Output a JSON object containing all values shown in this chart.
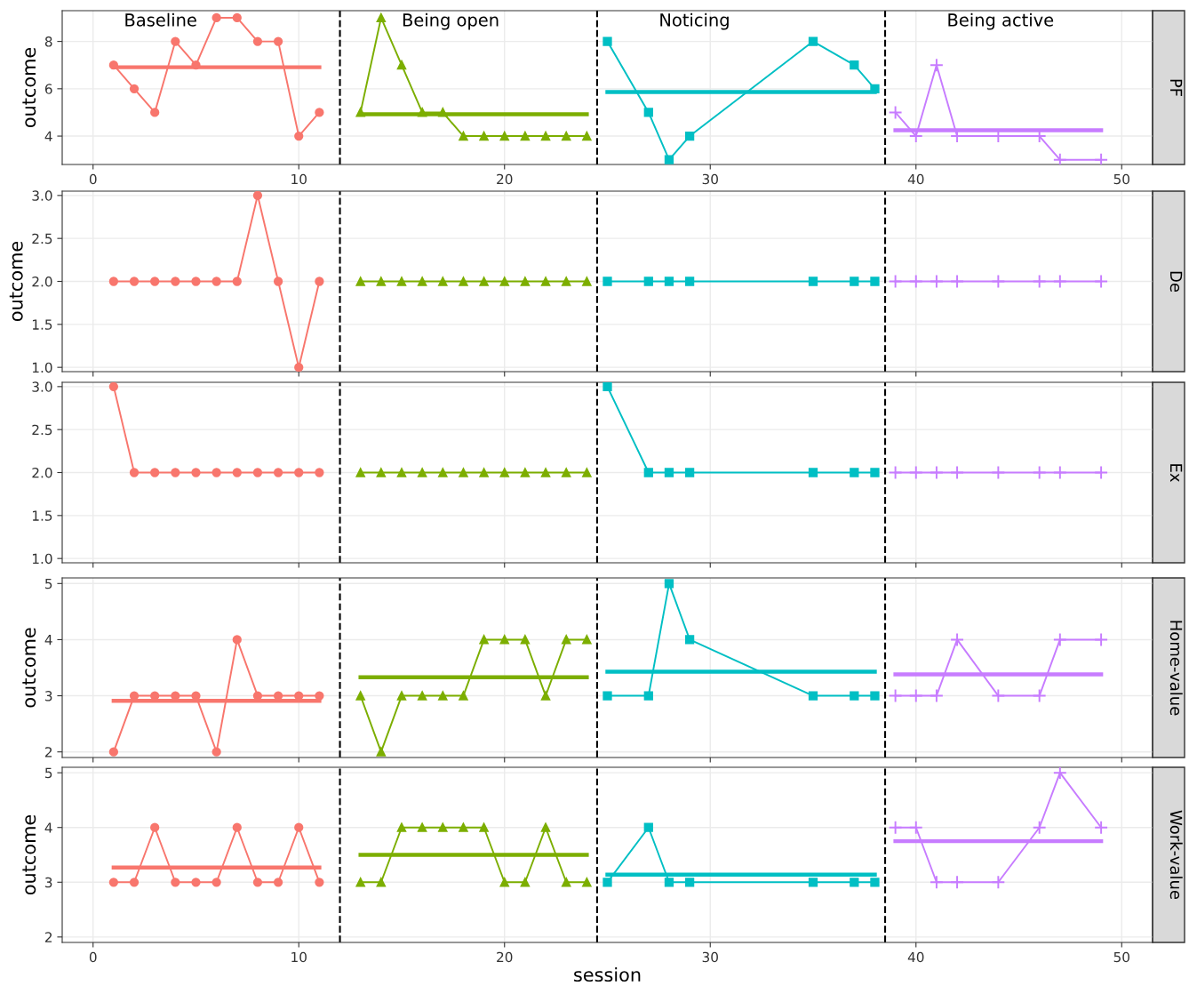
{
  "chart_data": [
    {
      "type": "line",
      "y2label": "PF",
      "ylabel": "outcome",
      "xlim": [
        -1.5,
        51.5
      ],
      "xticks": [
        0,
        10,
        20,
        30,
        40,
        50
      ],
      "ylim": [
        2.8,
        9.3
      ],
      "yticks": [
        4,
        6,
        8
      ],
      "grid": true,
      "annotations": [
        "Baseline",
        "Being open",
        "Noticing",
        "Being active"
      ],
      "ref_lines": [
        {
          "axis": "x",
          "value": 12,
          "color": "#000000",
          "line_style": "dashed"
        },
        {
          "axis": "x",
          "value": 24.5,
          "color": "#000000",
          "line_style": "dashed"
        },
        {
          "axis": "x",
          "value": 38.5,
          "color": "#000000",
          "line_style": "dashed"
        }
      ],
      "series": [
        {
          "color": "#f8766d",
          "marker": "circle",
          "x": [
            1,
            2,
            3,
            4,
            5,
            6,
            7,
            8,
            9,
            10,
            11
          ],
          "values": [
            7,
            6,
            5,
            8,
            7,
            9,
            9,
            8,
            8,
            4,
            5
          ]
        },
        {
          "color": "#7cae00",
          "marker": "triangle",
          "x": [
            13,
            14,
            15,
            16,
            17,
            18,
            19,
            20,
            21,
            22,
            23,
            24
          ],
          "values": [
            5,
            9,
            7,
            5,
            5,
            4,
            4,
            4,
            4,
            4,
            4,
            4
          ]
        },
        {
          "color": "#00bfc4",
          "marker": "square",
          "x": [
            25,
            27,
            28,
            29,
            35,
            37,
            38
          ],
          "values": [
            8,
            5,
            3,
            4,
            8,
            7,
            6
          ]
        },
        {
          "color": "#c77cff",
          "marker": "cross",
          "x": [
            39,
            40,
            41,
            42,
            44,
            46,
            47,
            49
          ],
          "values": [
            5,
            4,
            7,
            4,
            4,
            4,
            3,
            3
          ]
        },
        {
          "color": "#f8766d",
          "marker": "none",
          "x": [
            1,
            11
          ],
          "values": [
            6.91,
            6.91
          ]
        },
        {
          "color": "#7cae00",
          "marker": "none",
          "x": [
            13,
            24
          ],
          "values": [
            4.92,
            4.92
          ]
        },
        {
          "color": "#00bfc4",
          "marker": "none",
          "x": [
            25,
            38
          ],
          "values": [
            5.86,
            5.86
          ]
        },
        {
          "color": "#c77cff",
          "marker": "none",
          "x": [
            39,
            49
          ],
          "values": [
            4.25,
            4.25
          ]
        }
      ]
    },
    {
      "type": "line",
      "y2label": "De",
      "ylabel": "outcome",
      "xlim": [
        -1.5,
        51.5
      ],
      "xticks": [
        0,
        10,
        20,
        30,
        40,
        50
      ],
      "ylim": [
        0.95,
        3.05
      ],
      "yticks": [
        {
          "value": 1,
          "label": "1.0"
        },
        1.5,
        {
          "value": 2,
          "label": "2.0"
        },
        2.5,
        {
          "value": 3,
          "label": "3.0"
        }
      ],
      "grid": true,
      "tick_labels": "y",
      "ref_lines": [
        {
          "axis": "x",
          "value": 12,
          "color": "#000000",
          "line_style": "dashed"
        },
        {
          "axis": "x",
          "value": 24.5,
          "color": "#000000",
          "line_style": "dashed"
        },
        {
          "axis": "x",
          "value": 38.5,
          "color": "#000000",
          "line_style": "dashed"
        }
      ],
      "series": [
        {
          "color": "#f8766d",
          "marker": "circle",
          "x": [
            1,
            2,
            3,
            4,
            5,
            6,
            7,
            8,
            9,
            10,
            11
          ],
          "values": [
            2,
            2,
            2,
            2,
            2,
            2,
            2,
            3,
            2,
            1,
            2
          ]
        },
        {
          "color": "#7cae00",
          "marker": "triangle",
          "x": [
            13,
            14,
            15,
            16,
            17,
            18,
            19,
            20,
            21,
            22,
            23,
            24
          ],
          "values": [
            2,
            2,
            2,
            2,
            2,
            2,
            2,
            2,
            2,
            2,
            2,
            2
          ]
        },
        {
          "color": "#00bfc4",
          "marker": "square",
          "x": [
            25,
            27,
            28,
            29,
            35,
            37,
            38
          ],
          "values": [
            2,
            2,
            2,
            2,
            2,
            2,
            2
          ]
        },
        {
          "color": "#c77cff",
          "marker": "cross",
          "x": [
            39,
            40,
            41,
            42,
            44,
            46,
            47,
            49
          ],
          "values": [
            2,
            2,
            2,
            2,
            2,
            2,
            2,
            2
          ]
        }
      ]
    },
    {
      "type": "line",
      "y2label": "Ex",
      "xlim": [
        -1.5,
        51.5
      ],
      "xticks": [
        0,
        10,
        20,
        30,
        40,
        50
      ],
      "ylim": [
        0.95,
        3.05
      ],
      "yticks": [
        {
          "value": 1,
          "label": "1.0"
        },
        1.5,
        {
          "value": 2,
          "label": "2.0"
        },
        2.5,
        {
          "value": 3,
          "label": "3.0"
        }
      ],
      "grid": true,
      "tick_labels": "y",
      "ref_lines": [
        {
          "axis": "x",
          "value": 12,
          "color": "#000000",
          "line_style": "dashed"
        },
        {
          "axis": "x",
          "value": 24.5,
          "color": "#000000",
          "line_style": "dashed"
        },
        {
          "axis": "x",
          "value": 38.5,
          "color": "#000000",
          "line_style": "dashed"
        }
      ],
      "series": [
        {
          "color": "#f8766d",
          "marker": "circle",
          "x": [
            1,
            2,
            3,
            4,
            5,
            6,
            7,
            8,
            9,
            10,
            11
          ],
          "values": [
            3,
            2,
            2,
            2,
            2,
            2,
            2,
            2,
            2,
            2,
            2
          ]
        },
        {
          "color": "#7cae00",
          "marker": "triangle",
          "x": [
            13,
            14,
            15,
            16,
            17,
            18,
            19,
            20,
            21,
            22,
            23,
            24
          ],
          "values": [
            2,
            2,
            2,
            2,
            2,
            2,
            2,
            2,
            2,
            2,
            2,
            2
          ]
        },
        {
          "color": "#00bfc4",
          "marker": "square",
          "x": [
            25,
            27,
            28,
            29,
            35,
            37,
            38
          ],
          "values": [
            3,
            2,
            2,
            2,
            2,
            2,
            2
          ]
        },
        {
          "color": "#c77cff",
          "marker": "cross",
          "x": [
            39,
            40,
            41,
            42,
            44,
            46,
            47,
            49
          ],
          "values": [
            2,
            2,
            2,
            2,
            2,
            2,
            2,
            2
          ]
        }
      ]
    },
    {
      "type": "line",
      "y2label": "Home-value",
      "ylabel": "outcome",
      "xlim": [
        -1.5,
        51.5
      ],
      "xticks": [
        0,
        10,
        20,
        30,
        40,
        50
      ],
      "ylim": [
        1.9,
        5.1
      ],
      "yticks": [
        2,
        3,
        4,
        5
      ],
      "grid": true,
      "tick_labels": "y",
      "ref_lines": [
        {
          "axis": "x",
          "value": 12,
          "color": "#000000",
          "line_style": "dashed"
        },
        {
          "axis": "x",
          "value": 24.5,
          "color": "#000000",
          "line_style": "dashed"
        },
        {
          "axis": "x",
          "value": 38.5,
          "color": "#000000",
          "line_style": "dashed"
        }
      ],
      "series": [
        {
          "color": "#f8766d",
          "marker": "circle",
          "x": [
            1,
            2,
            3,
            4,
            5,
            6,
            7,
            8,
            9,
            10,
            11
          ],
          "values": [
            2,
            3,
            3,
            3,
            3,
            2,
            4,
            3,
            3,
            3,
            3
          ]
        },
        {
          "color": "#7cae00",
          "marker": "triangle",
          "x": [
            13,
            14,
            15,
            16,
            17,
            18,
            19,
            20,
            21,
            22,
            23,
            24
          ],
          "values": [
            3,
            2,
            3,
            3,
            3,
            3,
            4,
            4,
            4,
            3,
            4,
            4
          ]
        },
        {
          "color": "#00bfc4",
          "marker": "square",
          "x": [
            25,
            27,
            28,
            29,
            35,
            37,
            38
          ],
          "values": [
            3,
            3,
            5,
            4,
            3,
            3,
            3
          ]
        },
        {
          "color": "#c77cff",
          "marker": "cross",
          "x": [
            39,
            40,
            41,
            42,
            44,
            46,
            47,
            49
          ],
          "values": [
            3,
            3,
            3,
            4,
            3,
            3,
            4,
            4
          ]
        },
        {
          "color": "#f8766d",
          "marker": "none",
          "x": [
            1,
            11
          ],
          "values": [
            2.91,
            2.91
          ]
        },
        {
          "color": "#7cae00",
          "marker": "none",
          "x": [
            13,
            24
          ],
          "values": [
            3.33,
            3.33
          ]
        },
        {
          "color": "#00bfc4",
          "marker": "none",
          "x": [
            25,
            38
          ],
          "values": [
            3.43,
            3.43
          ]
        },
        {
          "color": "#c77cff",
          "marker": "none",
          "x": [
            39,
            49
          ],
          "values": [
            3.38,
            3.38
          ]
        }
      ]
    },
    {
      "type": "line",
      "y2label": "Work-value",
      "ylabel": "outcome",
      "xlabel": "session",
      "xlim": [
        -1.5,
        51.5
      ],
      "xticks": [
        0,
        10,
        20,
        30,
        40,
        50
      ],
      "ylim": [
        1.9,
        5.1
      ],
      "yticks": [
        2,
        3,
        4,
        5
      ],
      "grid": true,
      "ref_lines": [
        {
          "axis": "x",
          "value": 12,
          "color": "#000000",
          "line_style": "dashed"
        },
        {
          "axis": "x",
          "value": 24.5,
          "color": "#000000",
          "line_style": "dashed"
        },
        {
          "axis": "x",
          "value": 38.5,
          "color": "#000000",
          "line_style": "dashed"
        }
      ],
      "series": [
        {
          "color": "#f8766d",
          "marker": "circle",
          "x": [
            1,
            2,
            3,
            4,
            5,
            6,
            7,
            8,
            9,
            10,
            11
          ],
          "values": [
            3,
            3,
            4,
            3,
            3,
            3,
            4,
            3,
            3,
            4,
            3
          ]
        },
        {
          "color": "#7cae00",
          "marker": "triangle",
          "x": [
            13,
            14,
            15,
            16,
            17,
            18,
            19,
            20,
            21,
            22,
            23,
            24
          ],
          "values": [
            3,
            3,
            4,
            4,
            4,
            4,
            4,
            3,
            3,
            4,
            3,
            3
          ]
        },
        {
          "color": "#00bfc4",
          "marker": "square",
          "x": [
            25,
            27,
            28,
            29,
            35,
            37,
            38
          ],
          "values": [
            3,
            4,
            3,
            3,
            3,
            3,
            3
          ]
        },
        {
          "color": "#c77cff",
          "marker": "cross",
          "x": [
            39,
            40,
            41,
            42,
            44,
            46,
            47,
            49
          ],
          "values": [
            4,
            4,
            3,
            3,
            3,
            4,
            5,
            4
          ]
        },
        {
          "color": "#f8766d",
          "marker": "none",
          "x": [
            1,
            11
          ],
          "values": [
            3.27,
            3.27
          ]
        },
        {
          "color": "#7cae00",
          "marker": "none",
          "x": [
            13,
            24
          ],
          "values": [
            3.5,
            3.5
          ]
        },
        {
          "color": "#00bfc4",
          "marker": "none",
          "x": [
            25,
            38
          ],
          "values": [
            3.14,
            3.14
          ]
        },
        {
          "color": "#c77cff",
          "marker": "none",
          "x": [
            39,
            49
          ],
          "values": [
            3.75,
            3.75
          ]
        }
      ]
    }
  ]
}
